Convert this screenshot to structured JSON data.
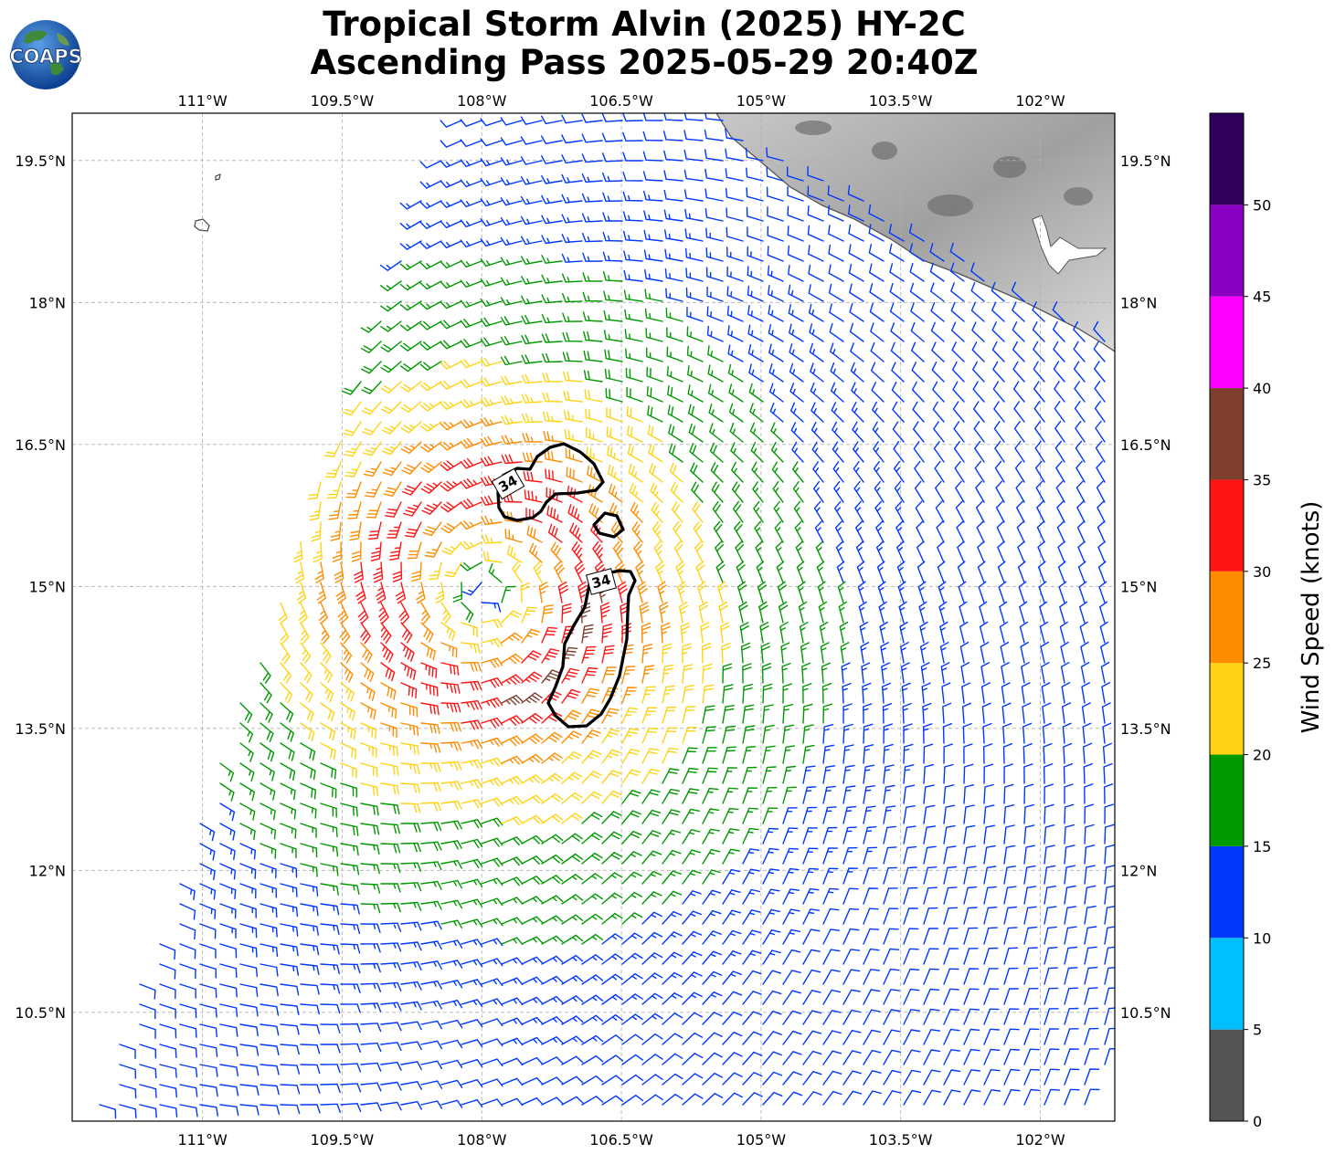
{
  "header": {
    "logo_text": "COAPS",
    "title_line1": "Tropical Storm Alvin (2025) HY-2C",
    "title_line2": "Ascending Pass 2025-05-29 20:40Z"
  },
  "map": {
    "lon_ticks": [
      "111°W",
      "109.5°W",
      "108°W",
      "106.5°W",
      "105°W",
      "103.5°W",
      "102°W"
    ],
    "lon_values": [
      -111,
      -109.5,
      -108,
      -106.5,
      -105,
      -103.5,
      -102
    ],
    "lat_ticks": [
      "19.5°N",
      "18°N",
      "16.5°N",
      "15°N",
      "13.5°N",
      "12°N",
      "10.5°N"
    ],
    "lat_values": [
      19.5,
      18,
      16.5,
      15,
      13.5,
      12,
      10.5
    ],
    "lon_range": [
      -112.4,
      -101.2
    ],
    "lat_range": [
      9.35,
      20.0
    ],
    "grid": true,
    "storm_center": {
      "lon": -107.95,
      "lat": 14.95
    },
    "wind_radius_max_kt": 35,
    "contour_label": "34",
    "contour_level_kt": 34
  },
  "colorbar": {
    "title": "Wind Speed (knots)",
    "tick_labels": [
      "0",
      "5",
      "10",
      "15",
      "20",
      "25",
      "30",
      "35",
      "40",
      "45",
      "50"
    ],
    "bins": [
      {
        "min": 0,
        "max": 5,
        "color": "#555555"
      },
      {
        "min": 5,
        "max": 10,
        "color": "#00bfff"
      },
      {
        "min": 10,
        "max": 15,
        "color": "#0037ff"
      },
      {
        "min": 15,
        "max": 20,
        "color": "#009900"
      },
      {
        "min": 20,
        "max": 25,
        "color": "#ffd314"
      },
      {
        "min": 25,
        "max": 30,
        "color": "#ff8c00"
      },
      {
        "min": 30,
        "max": 35,
        "color": "#ff1414"
      },
      {
        "min": 35,
        "max": 40,
        "color": "#7f3f2f"
      },
      {
        "min": 40,
        "max": 45,
        "color": "#ff00ff"
      },
      {
        "min": 45,
        "max": 50,
        "color": "#8a00c2"
      },
      {
        "min": 50,
        "max": 55,
        "color": "#2e005c"
      }
    ]
  }
}
